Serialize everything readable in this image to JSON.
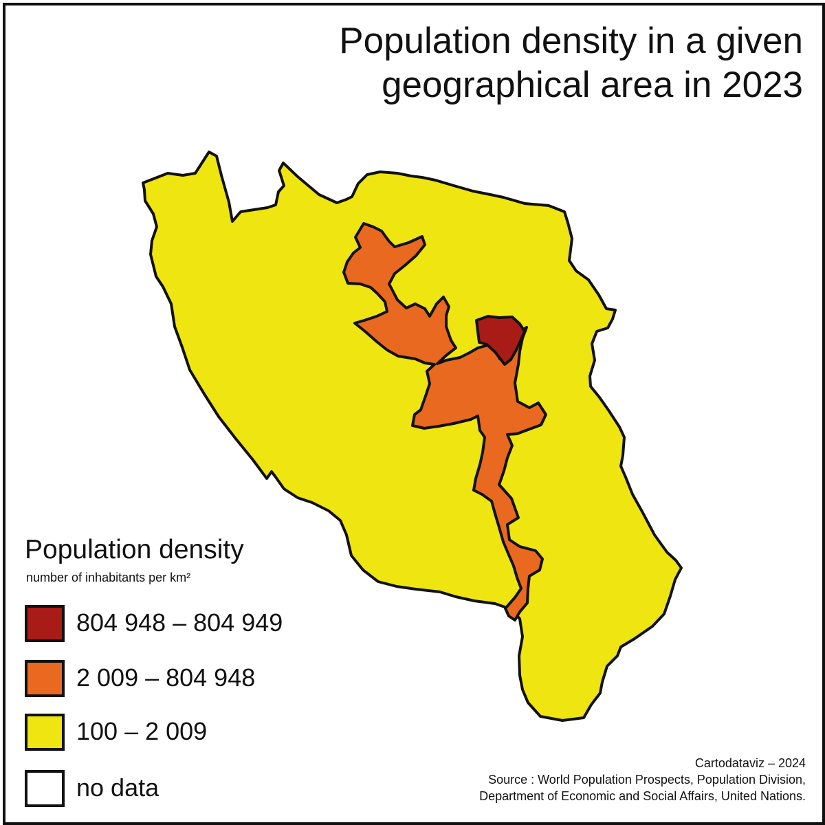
{
  "map": {
    "title_line1": "Population density in a given",
    "title_line2": "geographical area in 2023",
    "legend": {
      "title": "Population density",
      "subtitle": "number of inhabitants per km²",
      "classes": [
        {
          "label": "804 948 – 804 949",
          "color": "#a91b17"
        },
        {
          "label": "2 009 – 804 948",
          "color": "#e8691f"
        },
        {
          "label": "100 – 2 009",
          "color": "#eee511"
        },
        {
          "label": "no data",
          "color": "#ffffff"
        }
      ]
    },
    "credit": "Cartodataviz – 2024",
    "source_line1": "Source : World Population Prospects, Population Division,",
    "source_line2": "Department of Economic and Social Affairs, United Nations.",
    "colors": {
      "outline": "#111111",
      "background": "#ffffff"
    }
  }
}
